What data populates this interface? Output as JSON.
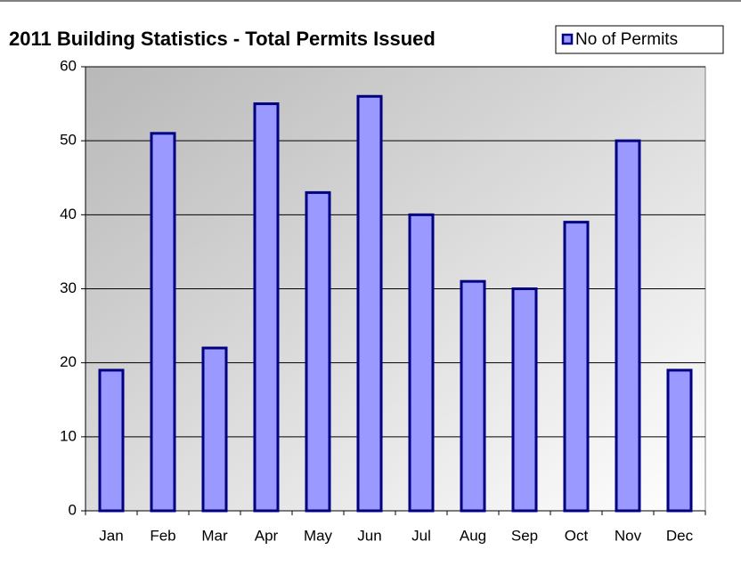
{
  "chart_data": {
    "type": "bar",
    "title": "2011 Building Statistics - Total Permits Issued",
    "categories": [
      "Jan",
      "Feb",
      "Mar",
      "Apr",
      "May",
      "Jun",
      "Jul",
      "Aug",
      "Sep",
      "Oct",
      "Nov",
      "Dec"
    ],
    "series": [
      {
        "name": "No of Permits",
        "color": "#9999ff",
        "edge": "#000080",
        "values": [
          19,
          51,
          22,
          55,
          43,
          56,
          40,
          31,
          30,
          39,
          50,
          19
        ]
      }
    ],
    "ylim": [
      0,
      60
    ],
    "yticks": [
      0,
      10,
      20,
      30,
      40,
      50,
      60
    ],
    "grid": true,
    "legend": "top-right"
  }
}
